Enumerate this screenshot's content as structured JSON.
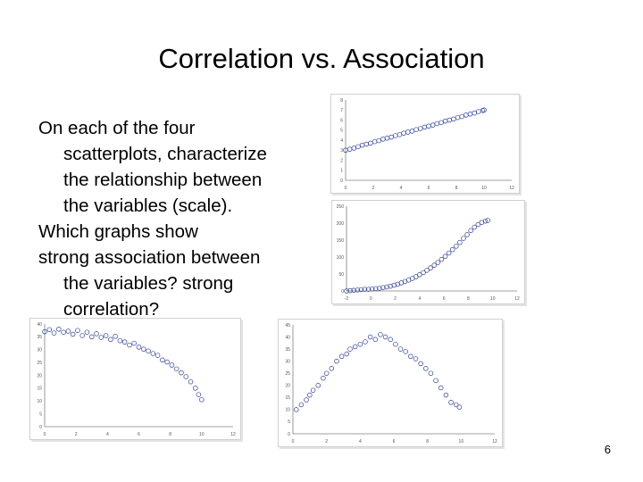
{
  "slide": {
    "title": "Correlation vs. Association",
    "body_lines": [
      "On each of the four",
      "scatterplots, characterize",
      "the relationship between",
      "the variables (scale).",
      "Which graphs show",
      "strong association between",
      "the variables? strong",
      "correlation?"
    ],
    "page_number": "6"
  },
  "colors": {
    "marker": "#2c3e99",
    "axis": "#808080",
    "frame": "#d0d0d0"
  },
  "chart_data": [
    {
      "id": "linear",
      "type": "scatter",
      "marker": "open-circle",
      "xlim": [
        0,
        12
      ],
      "ylim": [
        0,
        8
      ],
      "xticks": [
        "0",
        "2",
        "4",
        "6",
        "8",
        "10",
        "12"
      ],
      "yticks": [
        "0",
        "1",
        "2",
        "3",
        "4",
        "5",
        "6",
        "7",
        "8"
      ],
      "x_range": [
        0,
        10
      ],
      "trend": "y = 3 + 0.4x",
      "points_y_formula": "linear",
      "points": [
        [
          0,
          3.0
        ],
        [
          0.3,
          3.1
        ],
        [
          0.6,
          3.2
        ],
        [
          0.9,
          3.35
        ],
        [
          1.2,
          3.5
        ],
        [
          1.5,
          3.6
        ],
        [
          1.8,
          3.7
        ],
        [
          2.1,
          3.85
        ],
        [
          2.4,
          3.95
        ],
        [
          2.7,
          4.1
        ],
        [
          3.0,
          4.2
        ],
        [
          3.3,
          4.3
        ],
        [
          3.6,
          4.45
        ],
        [
          3.9,
          4.55
        ],
        [
          4.2,
          4.7
        ],
        [
          4.5,
          4.8
        ],
        [
          4.8,
          4.9
        ],
        [
          5.1,
          5.05
        ],
        [
          5.4,
          5.15
        ],
        [
          5.7,
          5.3
        ],
        [
          6.0,
          5.4
        ],
        [
          6.3,
          5.5
        ],
        [
          6.6,
          5.65
        ],
        [
          6.9,
          5.75
        ],
        [
          7.2,
          5.9
        ],
        [
          7.5,
          6.0
        ],
        [
          7.8,
          6.1
        ],
        [
          8.1,
          6.25
        ],
        [
          8.4,
          6.35
        ],
        [
          8.7,
          6.5
        ],
        [
          9.0,
          6.6
        ],
        [
          9.3,
          6.7
        ],
        [
          9.6,
          6.85
        ],
        [
          9.9,
          6.95
        ],
        [
          10.0,
          7.0
        ]
      ]
    },
    {
      "id": "quadratic-up",
      "type": "scatter",
      "marker": "open-circle",
      "xlim": [
        -2,
        12
      ],
      "ylim": [
        0,
        250
      ],
      "xticks": [
        "-2",
        "0",
        "2",
        "4",
        "6",
        "8",
        "10",
        "12"
      ],
      "yticks": [
        "0",
        "50",
        "100",
        "150",
        "200",
        "250"
      ],
      "points": [
        [
          -2,
          0
        ],
        [
          -1.7,
          1
        ],
        [
          -1.4,
          2
        ],
        [
          -1.1,
          3
        ],
        [
          -0.8,
          4
        ],
        [
          -0.5,
          5
        ],
        [
          -0.2,
          5
        ],
        [
          0.1,
          6
        ],
        [
          0.4,
          7
        ],
        [
          0.7,
          8
        ],
        [
          1.0,
          10
        ],
        [
          1.3,
          12
        ],
        [
          1.6,
          14
        ],
        [
          1.9,
          17
        ],
        [
          2.2,
          20
        ],
        [
          2.5,
          24
        ],
        [
          2.8,
          28
        ],
        [
          3.1,
          32
        ],
        [
          3.4,
          37
        ],
        [
          3.7,
          42
        ],
        [
          4.0,
          48
        ],
        [
          4.3,
          54
        ],
        [
          4.6,
          61
        ],
        [
          4.9,
          68
        ],
        [
          5.2,
          76
        ],
        [
          5.5,
          84
        ],
        [
          5.8,
          93
        ],
        [
          6.1,
          102
        ],
        [
          6.4,
          112
        ],
        [
          6.7,
          122
        ],
        [
          7.0,
          132
        ],
        [
          7.3,
          143
        ],
        [
          7.6,
          155
        ],
        [
          7.9,
          166
        ],
        [
          8.2,
          178
        ],
        [
          8.5,
          188
        ],
        [
          8.8,
          196
        ],
        [
          9.1,
          202
        ],
        [
          9.4,
          206
        ],
        [
          9.6,
          208
        ]
      ]
    },
    {
      "id": "concave-down",
      "type": "scatter",
      "marker": "open-circle",
      "xlim": [
        0,
        12
      ],
      "ylim": [
        0,
        40
      ],
      "xticks": [
        "0",
        "2",
        "4",
        "6",
        "8",
        "10",
        "12"
      ],
      "yticks": [
        "0",
        "5",
        "10",
        "15",
        "20",
        "25",
        "30",
        "35",
        "40"
      ],
      "points": [
        [
          0,
          37.0
        ],
        [
          0.3,
          37.8
        ],
        [
          0.6,
          36.5
        ],
        [
          0.9,
          38.0
        ],
        [
          1.2,
          36.8
        ],
        [
          1.5,
          37.2
        ],
        [
          1.8,
          36.0
        ],
        [
          2.1,
          37.5
        ],
        [
          2.4,
          35.5
        ],
        [
          2.7,
          36.8
        ],
        [
          3.0,
          35.0
        ],
        [
          3.3,
          36.2
        ],
        [
          3.6,
          34.8
        ],
        [
          3.9,
          35.5
        ],
        [
          4.2,
          34.0
        ],
        [
          4.5,
          35.2
        ],
        [
          4.8,
          33.5
        ],
        [
          5.1,
          33.0
        ],
        [
          5.4,
          31.8
        ],
        [
          5.7,
          32.5
        ],
        [
          6.0,
          31.0
        ],
        [
          6.3,
          30.2
        ],
        [
          6.6,
          29.5
        ],
        [
          6.9,
          28.5
        ],
        [
          7.2,
          27.8
        ],
        [
          7.5,
          26.0
        ],
        [
          7.8,
          25.2
        ],
        [
          8.1,
          24.0
        ],
        [
          8.4,
          22.5
        ],
        [
          8.7,
          21.0
        ],
        [
          9.0,
          19.5
        ],
        [
          9.3,
          17.5
        ],
        [
          9.6,
          15.0
        ],
        [
          9.8,
          12.5
        ],
        [
          10.0,
          10.5
        ]
      ]
    },
    {
      "id": "arch",
      "type": "scatter",
      "marker": "open-circle",
      "xlim": [
        0,
        12
      ],
      "ylim": [
        0,
        45
      ],
      "xticks": [
        "0",
        "2",
        "4",
        "6",
        "8",
        "10",
        "12"
      ],
      "yticks": [
        "0",
        "5",
        "10",
        "15",
        "20",
        "25",
        "30",
        "35",
        "40",
        "45"
      ],
      "points": [
        [
          0.2,
          10
        ],
        [
          0.5,
          12
        ],
        [
          0.8,
          14
        ],
        [
          1.0,
          16
        ],
        [
          1.2,
          18
        ],
        [
          1.5,
          20
        ],
        [
          1.8,
          23
        ],
        [
          2.0,
          25
        ],
        [
          2.3,
          27
        ],
        [
          2.6,
          30
        ],
        [
          2.9,
          32
        ],
        [
          3.2,
          33
        ],
        [
          3.4,
          35
        ],
        [
          3.7,
          36
        ],
        [
          4.0,
          37
        ],
        [
          4.3,
          38
        ],
        [
          4.6,
          40
        ],
        [
          4.9,
          39
        ],
        [
          5.2,
          41
        ],
        [
          5.5,
          40
        ],
        [
          5.8,
          39
        ],
        [
          6.1,
          37
        ],
        [
          6.4,
          35
        ],
        [
          6.7,
          34
        ],
        [
          7.0,
          32
        ],
        [
          7.3,
          31
        ],
        [
          7.6,
          29
        ],
        [
          7.9,
          27
        ],
        [
          8.2,
          25
        ],
        [
          8.5,
          22
        ],
        [
          8.8,
          19
        ],
        [
          9.1,
          16
        ],
        [
          9.4,
          13
        ],
        [
          9.7,
          12
        ],
        [
          9.9,
          11
        ]
      ]
    }
  ]
}
